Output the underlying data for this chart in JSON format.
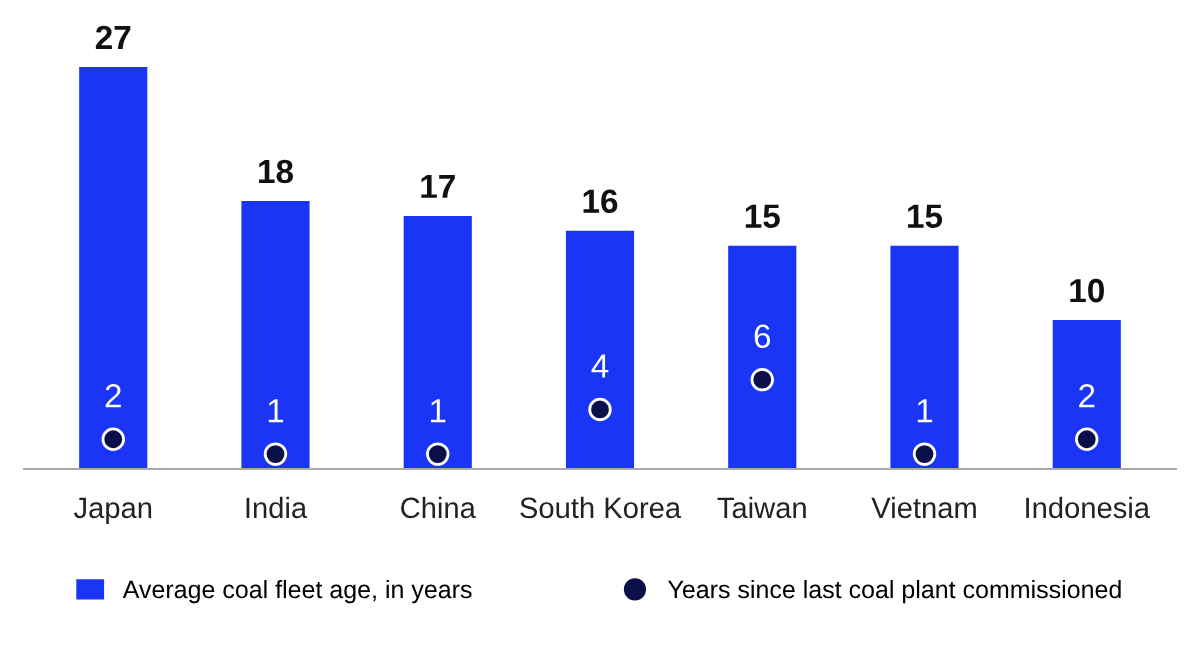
{
  "chart_data": {
    "type": "bar",
    "categories": [
      "Japan",
      "India",
      "China",
      "South Korea",
      "Taiwan",
      "Vietnam",
      "Indonesia"
    ],
    "series": [
      {
        "name": "Average coal fleet age, in years",
        "type": "bar",
        "color": "#1a35f5",
        "values": [
          27,
          18,
          17,
          16,
          15,
          15,
          10
        ]
      },
      {
        "name": "Years since last coal plant commissioned",
        "type": "scatter",
        "color": "#0b0f4a",
        "x": [
          "Japan",
          "India",
          "China",
          "South Korea",
          "Taiwan",
          "Vietnam",
          "Indonesia"
        ],
        "values": [
          2,
          1,
          1,
          4,
          6,
          1,
          2
        ]
      }
    ],
    "data_labels": true,
    "legend": "bottom",
    "marker": "circle",
    "grid": false
  }
}
